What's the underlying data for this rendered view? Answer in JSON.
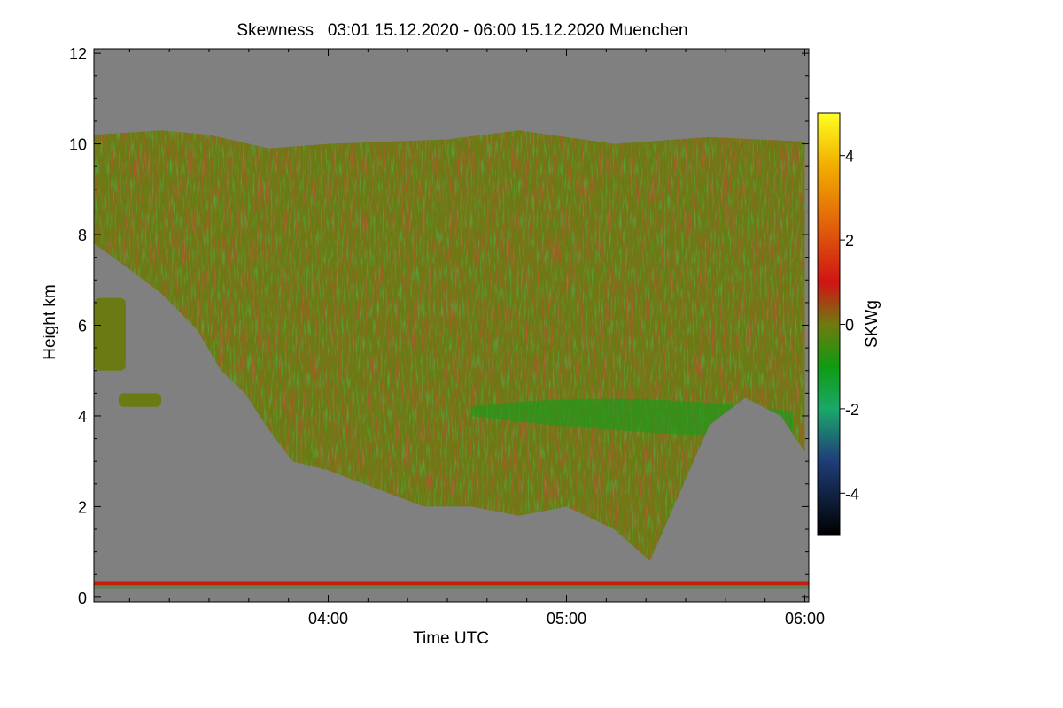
{
  "chart_data": {
    "type": "heatmap",
    "title": "Skewness   03:01 15.12.2020 - 06:00 15.12.2020 Muenchen",
    "xlabel": "Time UTC",
    "ylabel": "Height km",
    "x_ticks": [
      {
        "value": 4.0,
        "label": "04:00"
      },
      {
        "value": 5.0,
        "label": "05:00"
      },
      {
        "value": 6.0,
        "label": "06:00"
      }
    ],
    "xlim": [
      3.0167,
      6.0167
    ],
    "y_ticks": [
      0,
      2,
      4,
      6,
      8,
      10,
      12
    ],
    "ylim": [
      -0.1,
      12.1
    ],
    "colorbar": {
      "label": "SKWg",
      "ticks": [
        -4,
        -2,
        0,
        2,
        4
      ],
      "range": [
        -5,
        5
      ],
      "stops": [
        {
          "value": -5,
          "color": "#000000"
        },
        {
          "value": -3.2,
          "color": "#1f3f7a"
        },
        {
          "value": -2,
          "color": "#1aa86a"
        },
        {
          "value": -1,
          "color": "#109a10"
        },
        {
          "value": 0,
          "color": "#6f7a10"
        },
        {
          "value": 1,
          "color": "#d01414"
        },
        {
          "value": 2.5,
          "color": "#e36a08"
        },
        {
          "value": 3.8,
          "color": "#f2b000"
        },
        {
          "value": 5,
          "color": "#ffff22"
        }
      ]
    },
    "background_color": "#808080",
    "cloud_top_km": [
      [
        3.0167,
        10.2
      ],
      [
        3.3,
        10.3
      ],
      [
        3.5,
        10.2
      ],
      [
        3.75,
        9.9
      ],
      [
        4.0,
        10.0
      ],
      [
        4.5,
        10.1
      ],
      [
        4.8,
        10.3
      ],
      [
        5.2,
        10.0
      ],
      [
        5.6,
        10.15
      ],
      [
        6.0,
        10.05
      ]
    ],
    "cloud_base_km": [
      [
        3.0167,
        7.8
      ],
      [
        3.15,
        7.3
      ],
      [
        3.3,
        6.7
      ],
      [
        3.45,
        5.9
      ],
      [
        3.55,
        5.0
      ],
      [
        3.65,
        4.5
      ],
      [
        3.75,
        3.7
      ],
      [
        3.85,
        3.0
      ],
      [
        4.0,
        2.8
      ],
      [
        4.2,
        2.4
      ],
      [
        4.4,
        2.0
      ],
      [
        4.6,
        2.0
      ],
      [
        4.8,
        1.8
      ],
      [
        5.0,
        2.0
      ],
      [
        5.2,
        1.5
      ],
      [
        5.35,
        0.8
      ],
      [
        5.45,
        2.0
      ],
      [
        5.6,
        3.8
      ],
      [
        5.75,
        4.4
      ],
      [
        5.9,
        4.0
      ],
      [
        6.0,
        3.2
      ]
    ],
    "embedded_layer_km": [
      4.2,
      3.7
    ],
    "isolated_cloud_patches": [
      {
        "x": [
          3.0167,
          3.15
        ],
        "y": [
          5.0,
          6.6
        ]
      },
      {
        "x": [
          3.12,
          3.3
        ],
        "y": [
          4.2,
          4.5
        ]
      }
    ],
    "surface_band_km": 0.3
  }
}
